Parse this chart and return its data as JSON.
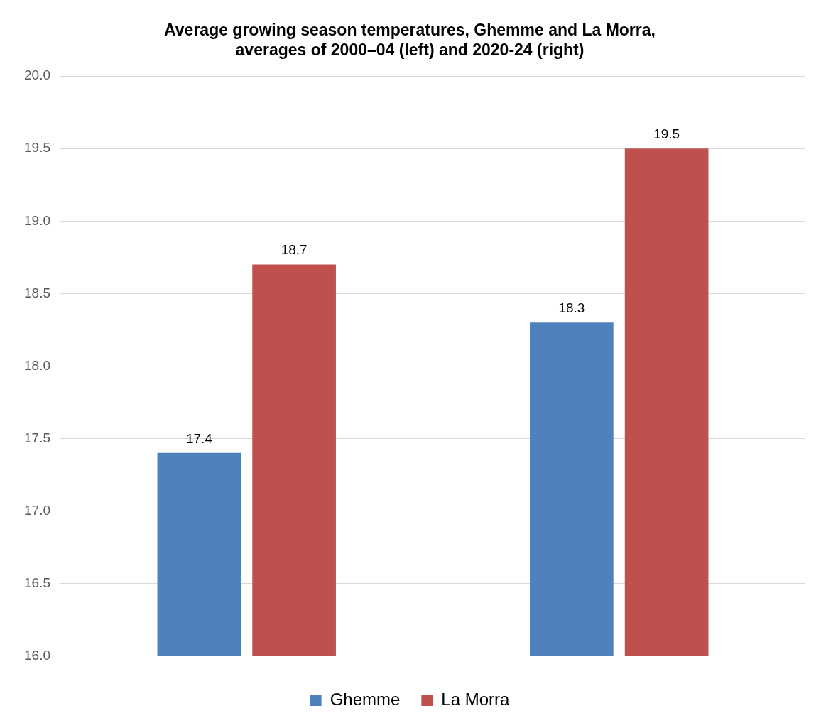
{
  "chart_data": {
    "type": "bar",
    "title": "Average growing season temperatures, Ghemme and La Morra,\naverages of 2000–04 (left) and 2020-24 (right)",
    "categories": [
      null,
      null
    ],
    "series": [
      {
        "name": "Ghemme",
        "color": "#4f81bd",
        "values": [
          17.4,
          18.3
        ]
      },
      {
        "name": "La Morra",
        "color": "#c0504d",
        "values": [
          18.7,
          19.5
        ]
      }
    ],
    "ylim": [
      16,
      20
    ],
    "yticks": [
      {
        "value": 16,
        "label": "16.0"
      },
      {
        "value": 16.5,
        "label": "16.5"
      },
      {
        "value": 17,
        "label": "17.0"
      },
      {
        "value": 17.5,
        "label": "17.5"
      },
      {
        "value": 18,
        "label": "18.0"
      },
      {
        "value": 18.5,
        "label": "18.5"
      },
      {
        "value": 19,
        "label": "19.0"
      },
      {
        "value": 19.5,
        "label": "19.5"
      },
      {
        "value": 20,
        "label": "20.0"
      }
    ],
    "grid": "y",
    "legend": "bottom",
    "data_labels": true
  }
}
